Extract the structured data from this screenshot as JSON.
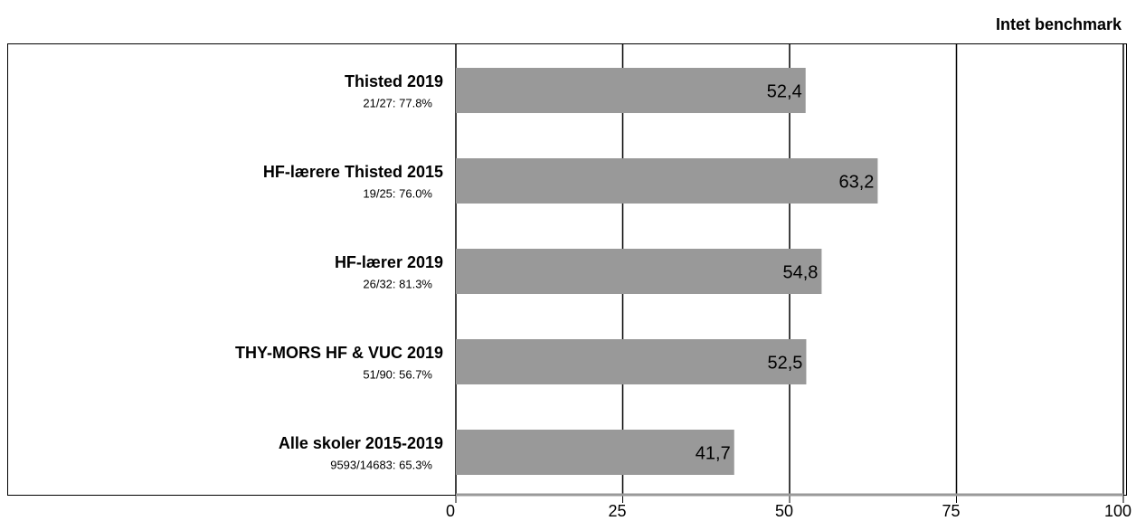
{
  "chart_data": {
    "type": "hbar",
    "title": "Intet benchmark",
    "categories": [
      "Thisted 2019",
      "HF-lærere Thisted 2015",
      "HF-lærer 2019",
      "THY-MORS HF & VUC 2019",
      "Alle skoler 2015-2019"
    ],
    "category_notes": [
      "21/27: 77.8%",
      "19/25: 76.0%",
      "26/32: 81.3%",
      "51/90: 56.7%",
      "9593/14683: 65.3%"
    ],
    "values": [
      52.4,
      63.2,
      54.8,
      52.5,
      41.7
    ],
    "value_labels": [
      "52,4",
      "63,2",
      "54,8",
      "52,5",
      "41,7"
    ],
    "color": "#999999",
    "xlim": [
      0,
      100
    ],
    "xticks": [
      0,
      25,
      50,
      75,
      100
    ],
    "grid": true
  }
}
